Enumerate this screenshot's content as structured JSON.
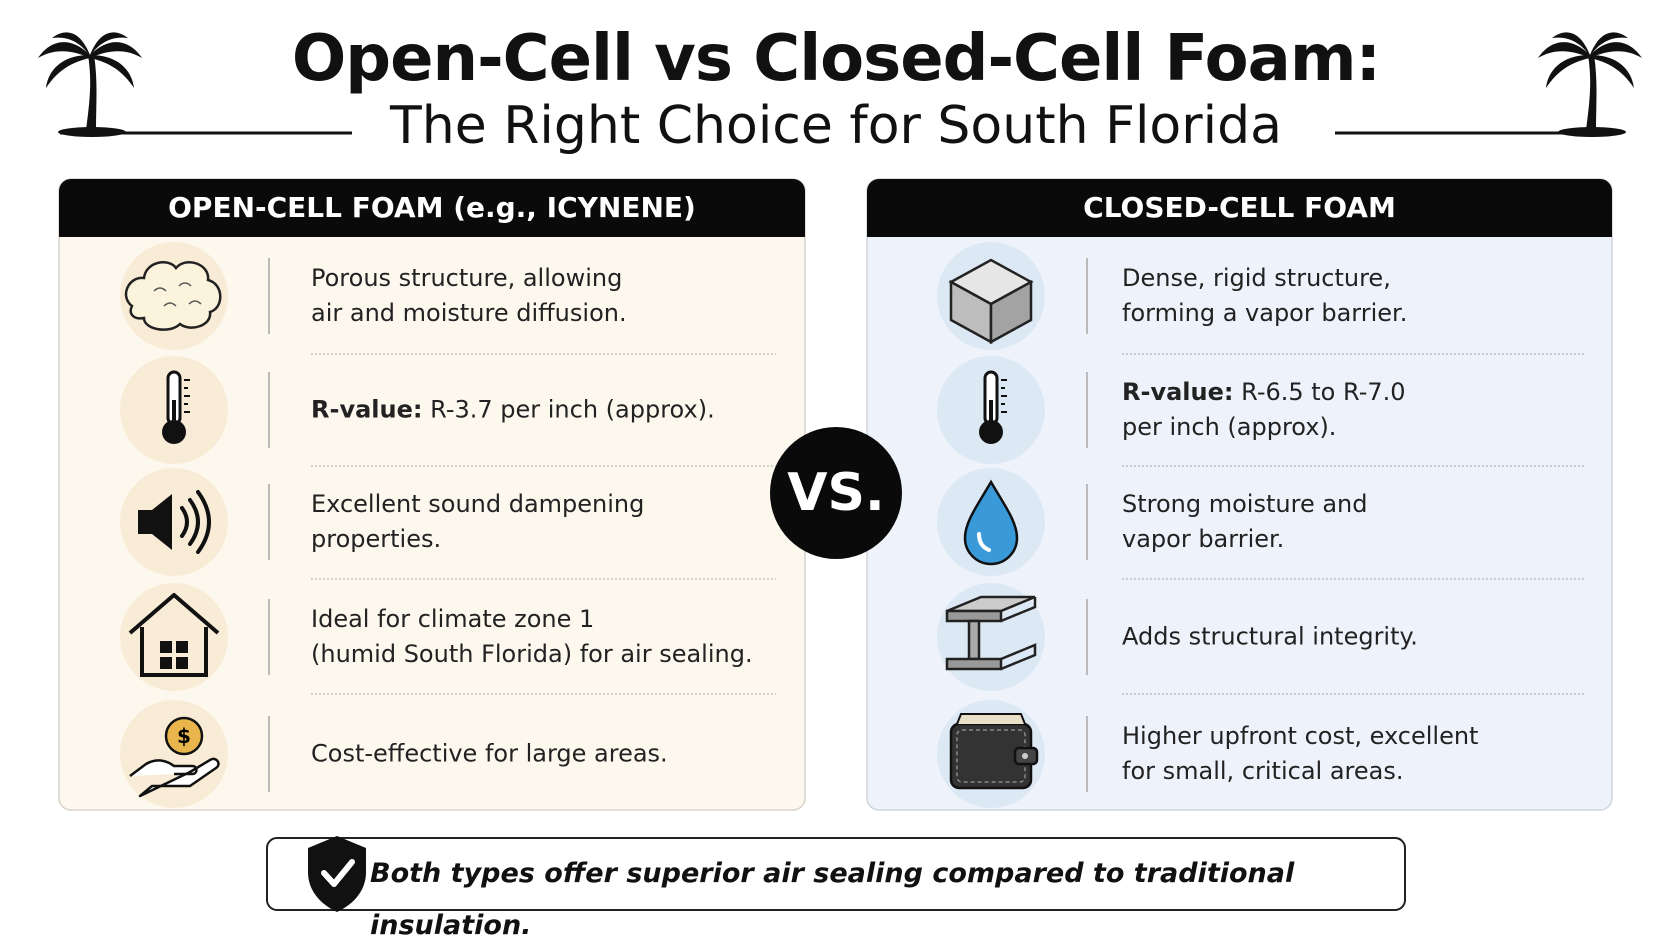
{
  "header": {
    "title": "Open-Cell vs Closed-Cell Foam:",
    "subtitle": "The Right Choice for South Florida"
  },
  "panels": [
    {
      "heading": "OPEN-CELL FOAM (e.g., ICYNENE)",
      "rows": [
        {
          "lines": [
            "Porous structure, allowing",
            "air and moisture diffusion."
          ]
        },
        {
          "label": "R-value:",
          "lines": [
            "R-3.7 per inch (approx)."
          ]
        },
        {
          "lines": [
            "Excellent sound dampening",
            "properties."
          ]
        },
        {
          "lines": [
            "Ideal for climate zone 1",
            "(humid South Florida) for air sealing."
          ]
        },
        {
          "lines": [
            "Cost-effective for large areas."
          ]
        }
      ]
    },
    {
      "heading": "CLOSED-CELL FOAM",
      "rows": [
        {
          "lines": [
            "Dense, rigid structure,",
            "forming a vapor barrier."
          ]
        },
        {
          "label": "R-value:",
          "lines": [
            "R-6.5 to R-7.0",
            "per inch (approx)."
          ]
        },
        {
          "lines": [
            "Strong moisture and",
            "vapor barrier."
          ]
        },
        {
          "lines": [
            "Adds structural integrity."
          ]
        },
        {
          "lines": [
            "Higher upfront cost, excellent",
            "for small, critical areas."
          ]
        }
      ]
    }
  ],
  "vs": "VS.",
  "footer": {
    "text": "Both types offer superior air sealing compared to traditional insulation."
  }
}
